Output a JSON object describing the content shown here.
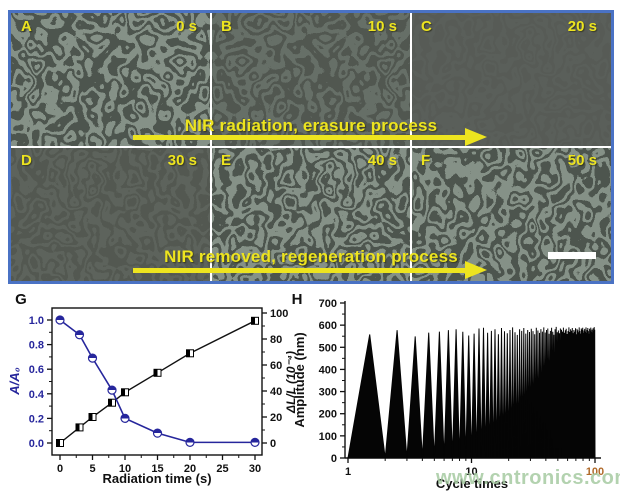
{
  "figure": {
    "panels": [
      {
        "letter": "A",
        "time": "0 s"
      },
      {
        "letter": "B",
        "time": "10 s"
      },
      {
        "letter": "C",
        "time": "20 s"
      },
      {
        "letter": "D",
        "time": "30 s"
      },
      {
        "letter": "E",
        "time": "40 s"
      },
      {
        "letter": "F",
        "time": "50 s"
      }
    ],
    "process_arrows": [
      {
        "label": "NIR radiation, erasure process"
      },
      {
        "label": "NIR removed, regeneration process"
      }
    ]
  },
  "chart_data": [
    {
      "id": "G",
      "type": "line",
      "panel_label": "G",
      "title": "",
      "xlabel": "Radiation time (s)",
      "ylabel_left": "A/A₀",
      "ylabel_right": "ΔL/L (10⁻⁴)",
      "xlim": [
        0,
        30
      ],
      "ylim_left": [
        0,
        1.0
      ],
      "ylim_right": [
        0,
        100
      ],
      "x_ticks": [
        0,
        5,
        10,
        15,
        20,
        25,
        30
      ],
      "x_minor_ticks": [
        2.5,
        7.5,
        12.5,
        17.5,
        22.5,
        27.5
      ],
      "y_left_ticks": [
        0.0,
        0.2,
        0.4,
        0.6,
        0.8,
        1.0
      ],
      "y_left_minor_ticks": [
        0.1,
        0.3,
        0.5,
        0.7,
        0.9
      ],
      "y_right_ticks": [
        0,
        20,
        40,
        60,
        80,
        100
      ],
      "y_right_minor_ticks": [
        10,
        30,
        50,
        70,
        90
      ],
      "grid": false,
      "legend": "none",
      "series": [
        {
          "name": "A/A0",
          "axis": "left",
          "color": "#26269c",
          "marker": "circle",
          "x": [
            0,
            3,
            5,
            8,
            10,
            15,
            20,
            30
          ],
          "y": [
            1.0,
            0.88,
            0.69,
            0.43,
            0.2,
            0.08,
            0.005,
            0.005
          ]
        },
        {
          "name": "dL/L",
          "axis": "right",
          "color": "#111111",
          "marker": "square",
          "x": [
            0,
            3,
            5,
            8,
            10,
            15,
            20,
            30
          ],
          "y": [
            0,
            12,
            20,
            31,
            39,
            54,
            69,
            94
          ]
        }
      ]
    },
    {
      "id": "H",
      "type": "line",
      "panel_label": "H",
      "title": "",
      "xlabel": "Cycle times",
      "ylabel": "Amplitude (nm)",
      "x_scale": "log",
      "xlim": [
        1,
        100
      ],
      "ylim": [
        0,
        700
      ],
      "x_ticks": [
        1,
        10,
        100
      ],
      "x_minor_ticks": [
        2,
        3,
        4,
        5,
        6,
        7,
        8,
        9,
        20,
        30,
        40,
        50,
        60,
        70,
        80,
        90
      ],
      "y_ticks": [
        0,
        100,
        200,
        300,
        400,
        500,
        600,
        700
      ],
      "y_minor_step": 50,
      "grid": false,
      "legend": "none",
      "series_color": "#050505",
      "waveform": {
        "valley": 0,
        "peaks": [
          558,
          577,
          549,
          566,
          571,
          577,
          581,
          570,
          553,
          562,
          585,
          588,
          566,
          574,
          581,
          559,
          587,
          572,
          563,
          578,
          590,
          568,
          556,
          581,
          574,
          587,
          562,
          578,
          569,
          584,
          573,
          559,
          588,
          576,
          565,
          582,
          571,
          590,
          567,
          578,
          585,
          561,
          574,
          588,
          570,
          557,
          581,
          592,
          568,
          576,
          563,
          585,
          579,
          571,
          589,
          566,
          577,
          584,
          560,
          573,
          590,
          569,
          581,
          575,
          587,
          564,
          578,
          571,
          586,
          559,
          583,
          577,
          568,
          590,
          574,
          562,
          585,
          579,
          588,
          566,
          576,
          583,
          571,
          590,
          565,
          578,
          587,
          573,
          561,
          584,
          576,
          589,
          570,
          580,
          567,
          586,
          574,
          591,
          579
        ]
      }
    }
  ],
  "watermark": {
    "text": "www.cntronics.com"
  },
  "colors": {
    "annotation_yellow": "#ede41f",
    "montage_border": "#4a72c4",
    "curve_blue": "#26269c",
    "curve_black": "#111111",
    "watermark_green": "#a6cba2",
    "tick_100_orange": "#b06a2a",
    "micrograph_base": "#4d554e",
    "micrograph_lines": "#93a096"
  }
}
